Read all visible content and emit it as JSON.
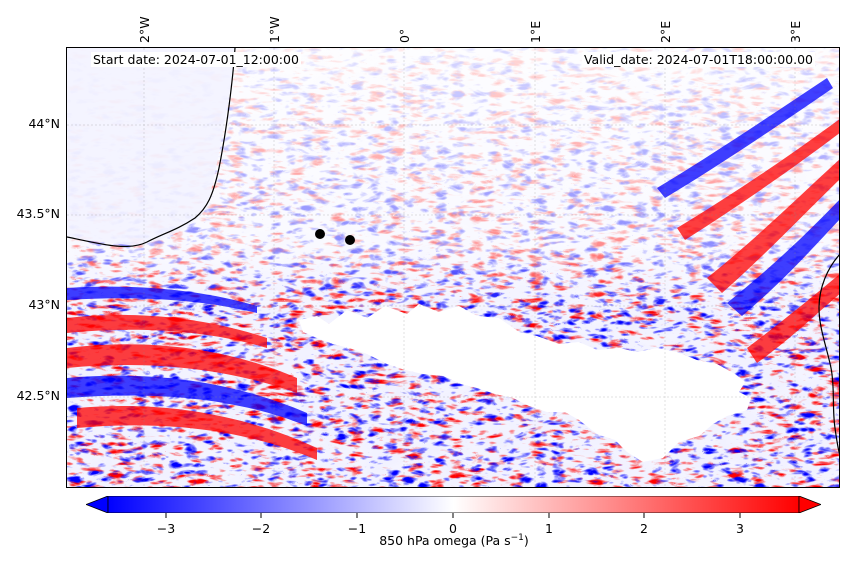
{
  "map": {
    "start_date": "Start date: 2024-07-01_12:00:00",
    "valid_date": "Valid_date: 2024-07-01T18:00:00.00",
    "longitude_labels": [
      "2°W",
      "1°W",
      "0°",
      "1°E",
      "2°E",
      "3°E"
    ],
    "latitude_labels": [
      "44°N",
      "43.5°N",
      "43°N",
      "42.5°N"
    ],
    "field": "850 hPa vertical velocity (omega)",
    "colormap": "bwr",
    "colors": {
      "negative": "#0000ff",
      "neutral": "#ffffff",
      "positive": "#ff0000",
      "coastline": "#000000"
    },
    "stations": 2
  },
  "colorbar": {
    "ticks": [
      "−3",
      "−2",
      "−1",
      "0",
      "1",
      "2",
      "3"
    ],
    "label": "850 hPa omega (Pa s",
    "label_exp": "−1",
    "label_close": ")",
    "vmin": -3.5,
    "vmax": 3.5,
    "extend": "both"
  }
}
